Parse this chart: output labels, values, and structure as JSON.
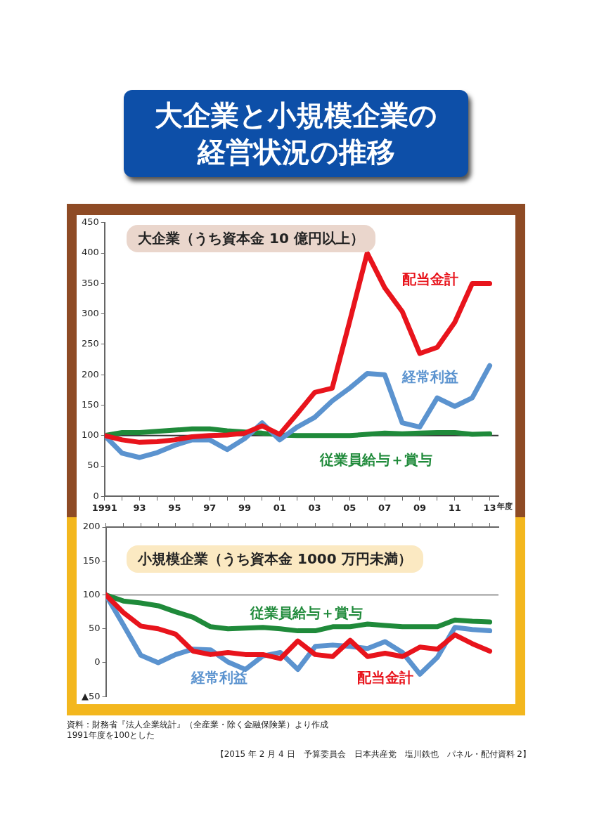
{
  "chart_data": [
    {
      "type": "line",
      "title": "大企業と小規模企業の経営状況の推移",
      "subtitle": "大企業（うち資本金 10 億円以上）",
      "x": [
        1991,
        1992,
        1993,
        1994,
        1995,
        1996,
        1997,
        1998,
        1999,
        2000,
        2001,
        2002,
        2003,
        2004,
        2005,
        2006,
        2007,
        2008,
        2009,
        2010,
        2011,
        2012,
        2013
      ],
      "series": [
        {
          "name": "配当金計",
          "color": "#e8141c",
          "values": [
            100,
            93,
            89,
            90,
            93,
            98,
            100,
            101,
            104,
            116,
            102,
            136,
            171,
            178,
            288,
            400,
            343,
            304,
            235,
            245,
            286,
            350,
            350
          ]
        },
        {
          "name": "経常利益",
          "color": "#5b93cf",
          "values": [
            100,
            71,
            64,
            72,
            84,
            93,
            93,
            77,
            95,
            121,
            93,
            114,
            130,
            157,
            178,
            202,
            200,
            121,
            114,
            162,
            148,
            162,
            215
          ]
        },
        {
          "name": "従業員給与＋賞与",
          "color": "#1f8a3a",
          "values": [
            100,
            105,
            105,
            107,
            109,
            111,
            111,
            108,
            106,
            104,
            101,
            100,
            100,
            100,
            100,
            102,
            104,
            103,
            104,
            105,
            105,
            102,
            103
          ]
        }
      ],
      "xlim": [
        1991,
        2013.5
      ],
      "xticks": [
        1991,
        {
          "value": 1992,
          "label": null
        },
        {
          "value": 1993,
          "label": "93"
        },
        {
          "value": 1994,
          "label": null
        },
        {
          "value": 1995,
          "label": "95"
        },
        {
          "value": 1996,
          "label": null
        },
        {
          "value": 1997,
          "label": "97"
        },
        {
          "value": 1998,
          "label": null
        },
        {
          "value": 1999,
          "label": "99"
        },
        {
          "value": 2000,
          "label": null
        },
        {
          "value": 2001,
          "label": "01"
        },
        {
          "value": 2002,
          "label": null
        },
        {
          "value": 2003,
          "label": "03"
        },
        {
          "value": 2004,
          "label": null
        },
        {
          "value": 2005,
          "label": "05"
        },
        {
          "value": 2006,
          "label": null
        },
        {
          "value": 2007,
          "label": "07"
        },
        {
          "value": 2008,
          "label": null
        },
        {
          "value": 2009,
          "label": "09"
        },
        {
          "value": 2010,
          "label": null
        },
        {
          "value": 2011,
          "label": "11"
        },
        {
          "value": 2012,
          "label": null
        },
        {
          "value": 2013,
          "label": "13"
        }
      ],
      "xlabel": "年度",
      "ylim": [
        0,
        450
      ],
      "yticks": [
        0,
        50,
        100,
        150,
        200,
        250,
        300,
        350,
        400,
        450
      ],
      "ref_lines": [
        {
          "axis": "y",
          "value": 100,
          "color": "#333333"
        }
      ],
      "grid": false,
      "legend": false,
      "marker": "none",
      "line_style": "solid"
    },
    {
      "type": "line",
      "title": "小規模企業（うち資本金 1000 万円未満）",
      "x": [
        1991,
        1992,
        1993,
        1994,
        1995,
        1996,
        1997,
        1998,
        1999,
        2000,
        2001,
        2002,
        2003,
        2004,
        2005,
        2006,
        2007,
        2008,
        2009,
        2010,
        2011,
        2012,
        2013
      ],
      "series": [
        {
          "name": "配当金計",
          "color": "#e8141c",
          "values": [
            100,
            74,
            54,
            50,
            42,
            17,
            12,
            15,
            12,
            12,
            6,
            32,
            12,
            9,
            33,
            9,
            14,
            9,
            23,
            20,
            41,
            28,
            17
          ]
        },
        {
          "name": "経常利益",
          "color": "#5b93cf",
          "values": [
            100,
            56,
            11,
            0,
            12,
            20,
            19,
            1,
            -10,
            10,
            15,
            -10,
            24,
            26,
            24,
            21,
            31,
            15,
            -17,
            8,
            52,
            49,
            47
          ]
        },
        {
          "name": "従業員給与＋賞与",
          "color": "#1f8a3a",
          "values": [
            100,
            91,
            88,
            84,
            75,
            67,
            53,
            50,
            51,
            52,
            50,
            47,
            47,
            53,
            53,
            57,
            55,
            53,
            53,
            53,
            63,
            61,
            60
          ]
        }
      ],
      "xlim": [
        1991,
        2013.5
      ],
      "xticks": [
        1991,
        1992,
        1993,
        1994,
        1995,
        1996,
        1997,
        1998,
        1999,
        2000,
        2001,
        2002,
        2003,
        2004,
        2005,
        2006,
        2007,
        2008,
        2009,
        2010,
        2011,
        2012,
        2013
      ],
      "ylim": [
        -50,
        200
      ],
      "yticks": [
        {
          "value": -50,
          "label": "▲50"
        },
        0,
        50,
        100,
        150,
        200
      ],
      "tick_labels": "y",
      "ref_lines": [
        {
          "axis": "y",
          "value": 100,
          "color": "#999999"
        }
      ],
      "annotations": [
        "資料：財務省『法人企業統計』（全産業・除く金融保険業）より作成",
        "1991年度を100とした",
        "【2015 年 2 月 4 日　予算委員会　日本共産党　塩川鉄也　パネル・配付資料 2】"
      ],
      "grid": false,
      "legend": false,
      "marker": "none",
      "line_style": "solid"
    }
  ]
}
